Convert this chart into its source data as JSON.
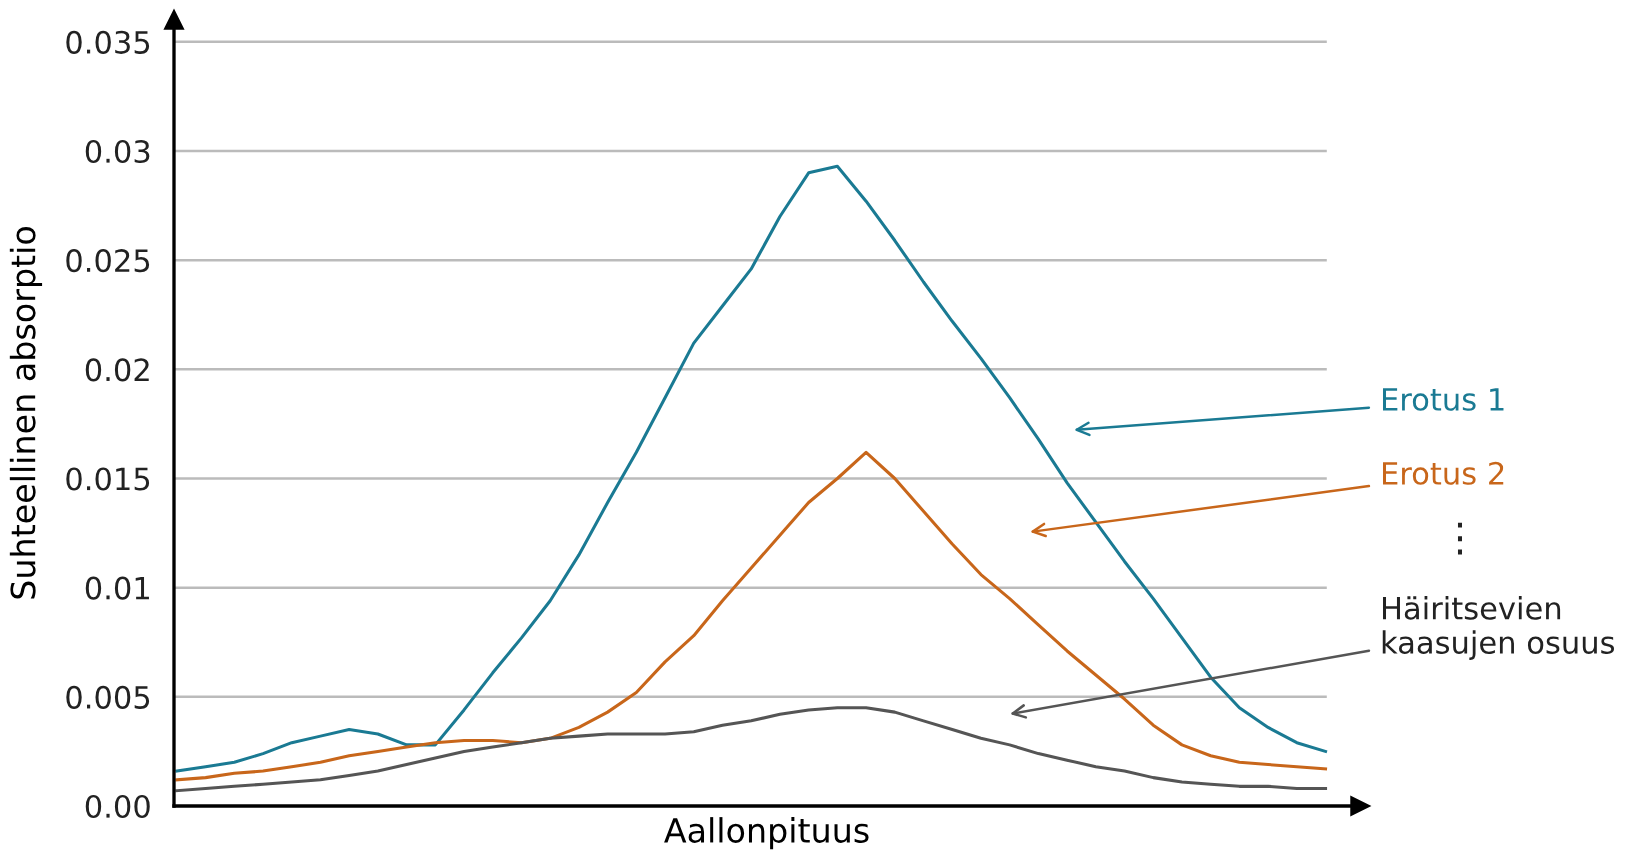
{
  "chart_data": {
    "type": "line",
    "xlabel": "Aallonpituus",
    "ylabel": "Suhteellinen absorptio",
    "categories": [
      null,
      null,
      null,
      null,
      null,
      null,
      null,
      null,
      null,
      null,
      null,
      null,
      null,
      null,
      null,
      null,
      null,
      null,
      null,
      null,
      null,
      null,
      null,
      null,
      null,
      null,
      null,
      null,
      null,
      null,
      null,
      null,
      null,
      null,
      null,
      null,
      null,
      null,
      null,
      null,
      null
    ],
    "series": [
      {
        "name": "Erotus 1",
        "color": "#1a7a93",
        "values": [
          0.0016,
          0.0018,
          0.002,
          0.0024,
          0.0029,
          0.0032,
          0.0035,
          0.0033,
          0.0028,
          0.0028,
          0.0044,
          0.0061,
          0.0077,
          0.0094,
          0.0115,
          0.0139,
          0.0162,
          0.0187,
          0.0212,
          0.0229,
          0.0246,
          0.027,
          0.029,
          0.0293,
          0.0277,
          0.0259,
          0.024,
          0.0222,
          0.0205,
          0.0187,
          0.0168,
          0.0148,
          0.013,
          0.0112,
          0.0095,
          0.0077,
          0.0059,
          0.0045,
          0.0036,
          0.0029,
          0.0025
        ]
      },
      {
        "name": "Erotus 2",
        "color": "#c8661a",
        "values": [
          0.0012,
          0.0013,
          0.0015,
          0.0016,
          0.0018,
          0.002,
          0.0023,
          0.0025,
          0.0027,
          0.0029,
          0.003,
          0.003,
          0.0029,
          0.0031,
          0.0036,
          0.0043,
          0.0052,
          0.0066,
          0.0078,
          0.0094,
          0.0109,
          0.0124,
          0.0139,
          0.015,
          0.0162,
          0.015,
          0.0135,
          0.012,
          0.0106,
          0.0095,
          0.0083,
          0.0071,
          0.006,
          0.0049,
          0.0037,
          0.0028,
          0.0023,
          0.002,
          0.0019,
          0.0018,
          0.0017
        ]
      },
      {
        "name": "Häiritsevien\nkaasujen osuus",
        "color": "#555555",
        "values": [
          0.0007,
          0.0008,
          0.0009,
          0.001,
          0.0011,
          0.0012,
          0.0014,
          0.0016,
          0.0019,
          0.0022,
          0.0025,
          0.0027,
          0.0029,
          0.0031,
          0.0032,
          0.0033,
          0.0033,
          0.0033,
          0.0034,
          0.0037,
          0.0039,
          0.0042,
          0.0044,
          0.0045,
          0.0045,
          0.0043,
          0.0039,
          0.0035,
          0.0031,
          0.0028,
          0.0024,
          0.0021,
          0.0018,
          0.0016,
          0.0013,
          0.0011,
          0.001,
          0.0009,
          0.0009,
          0.0008,
          0.0008
        ]
      }
    ],
    "annotations": [
      "⋮"
    ],
    "ylim": [
      0,
      0.036
    ],
    "yticks": [
      {
        "value": 0,
        "label": "0.00"
      },
      0.005,
      0.01,
      0.015,
      0.02,
      0.025,
      0.03,
      0.035
    ],
    "tick_labels": "y",
    "grid": "y",
    "legend": false
  }
}
